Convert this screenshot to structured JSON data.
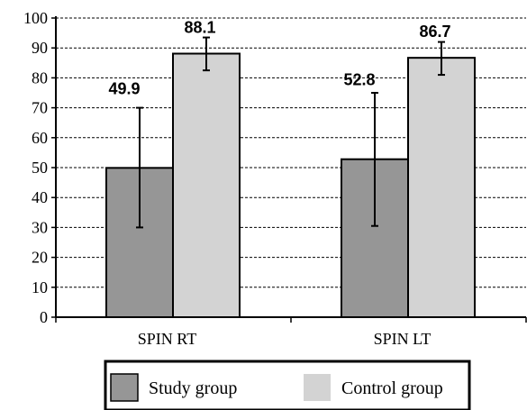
{
  "chart_data": {
    "type": "bar",
    "categories": [
      "SPIN RT",
      "SPIN LT"
    ],
    "series": [
      {
        "name": "Study group",
        "values": [
          49.9,
          52.8
        ],
        "error_low": [
          30,
          30.5
        ],
        "error_high": [
          70,
          75
        ],
        "color": "#969696"
      },
      {
        "name": "Control group",
        "values": [
          88.1,
          86.7
        ],
        "error_low": [
          82.5,
          81
        ],
        "error_high": [
          93.5,
          92
        ],
        "color": "#d3d3d3"
      }
    ],
    "data_labels": [
      "49.9",
      "88.1",
      "52.8",
      "86.7"
    ],
    "ylim": [
      0,
      100
    ],
    "yticks": [
      0,
      10,
      20,
      30,
      40,
      50,
      60,
      70,
      80,
      90,
      100
    ],
    "grid": "dashed horizontal",
    "legend_position": "bottom"
  }
}
